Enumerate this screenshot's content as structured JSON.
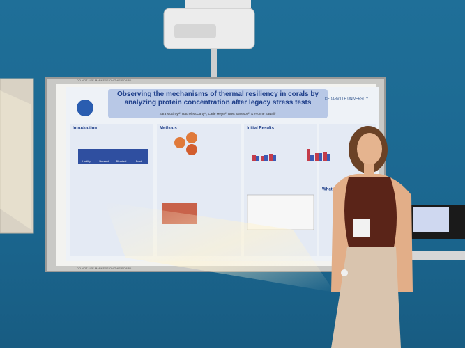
{
  "poster": {
    "title": "Observing the mechanisms of thermal resiliency in corals by analyzing protein concentration after legacy stress tests",
    "authors": "Sara McElroy¹², Rachel McCarty¹², Cade Meyer², Brett Jameson², & Yvonne Sawall²",
    "logo": "CEDARVILLE UNIVERSITY",
    "sections": [
      "Introduction",
      "Methods",
      "Initial Results",
      "What's Next"
    ],
    "coral_labels": [
      "Healthy",
      "Stressed",
      "Bleached",
      "Dead"
    ]
  },
  "board": {
    "notice_top": "DO NOT USE MARKERS ON THIS BOARD",
    "notice_bottom": "DO NOT USE MARKERS ON THIS BOARD"
  }
}
